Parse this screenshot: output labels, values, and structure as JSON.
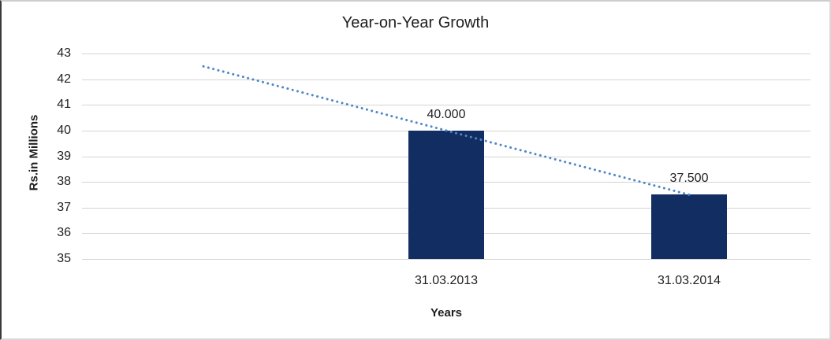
{
  "chart_data": {
    "type": "bar",
    "title": "Year-on-Year Growth",
    "xlabel": "Years",
    "ylabel": "Rs.in Millions",
    "categories": [
      "31.03.2013",
      "31.03.2014"
    ],
    "values": [
      40.0,
      37.5
    ],
    "data_labels": [
      "40.000",
      "37.500"
    ],
    "yticks": [
      35,
      36,
      37,
      38,
      39,
      40,
      41,
      42,
      43
    ],
    "ylim": [
      35,
      43
    ],
    "grid": "horizontal",
    "legend": "none",
    "colors": {
      "bar": "#122d62",
      "trendline": "#4e86c8",
      "gridline": "#d4d4d4",
      "text": "#1f1f1f"
    },
    "trendline": {
      "style": "dotted",
      "start_slot": 0,
      "start_value": 42.5,
      "end_slot": 2,
      "end_value": 37.5
    },
    "layout_hints": {
      "slot_count": 3,
      "bar_slots": [
        1,
        2
      ],
      "axis_lines": "none"
    }
  }
}
